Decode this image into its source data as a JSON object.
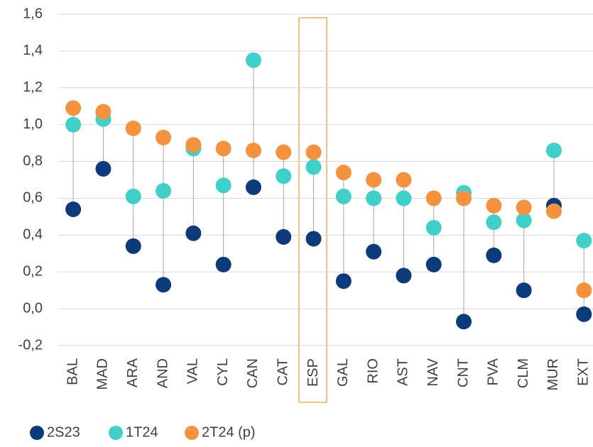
{
  "chart_data": {
    "type": "dot",
    "categories": [
      "BAL",
      "MAD",
      "ARA",
      "AND",
      "VAL",
      "CYL",
      "CAN",
      "CAT",
      "ESP",
      "GAL",
      "RIO",
      "AST",
      "NAV",
      "CNT",
      "PVA",
      "CLM",
      "MUR",
      "EXT"
    ],
    "series": [
      {
        "name": "2S23",
        "color": "#0b3b7a",
        "values": [
          0.54,
          0.76,
          0.34,
          0.13,
          0.41,
          0.24,
          0.66,
          0.39,
          0.38,
          0.15,
          0.31,
          0.18,
          0.24,
          -0.07,
          0.29,
          0.1,
          0.56,
          -0.03
        ]
      },
      {
        "name": "1T24",
        "color": "#3fd0c9",
        "values": [
          1.0,
          1.03,
          0.61,
          0.64,
          0.87,
          0.67,
          1.35,
          0.72,
          0.77,
          0.61,
          0.6,
          0.6,
          0.44,
          0.63,
          0.47,
          0.48,
          0.86,
          0.37
        ]
      },
      {
        "name": "2T24 (p)",
        "color": "#f5923e",
        "values": [
          1.09,
          1.07,
          0.98,
          0.93,
          0.89,
          0.87,
          0.86,
          0.85,
          0.85,
          0.74,
          0.7,
          0.7,
          0.6,
          0.6,
          0.56,
          0.55,
          0.53,
          0.1
        ]
      }
    ],
    "ylim": [
      -0.2,
      1.6
    ],
    "yticks": [
      {
        "value": -0.2,
        "label": "-0,2"
      },
      {
        "value": 0,
        "label": "0,0"
      },
      {
        "value": 0.2,
        "label": "0,2"
      },
      {
        "value": 0.4,
        "label": "0,4"
      },
      {
        "value": 0.6,
        "label": "0,6"
      },
      {
        "value": 0.8,
        "label": "0,8"
      },
      {
        "value": 1.0,
        "label": "1,0"
      },
      {
        "value": 1.2,
        "label": "1,2"
      },
      {
        "value": 1.4,
        "label": "1,4"
      },
      {
        "value": 1.6,
        "label": "1,6"
      }
    ],
    "grid": true
  }
}
